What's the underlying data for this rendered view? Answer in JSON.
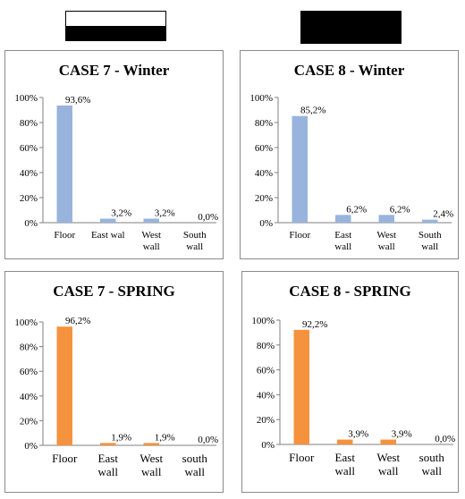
{
  "chart_data": [
    {
      "type": "bar",
      "title": "CASE 7 - Winter",
      "categories": [
        "Floor",
        "East wal",
        "West\nwall",
        "South\nwall"
      ],
      "values": [
        93.6,
        3.2,
        3.2,
        0.0
      ],
      "data_labels": [
        "93,6%",
        "3,2%",
        "3,2%",
        "0,0%"
      ],
      "yticks": [
        "0%",
        "20%",
        "40%",
        "60%",
        "80%",
        "100%"
      ],
      "ylim": [
        0,
        100
      ],
      "color": "#98b4dc",
      "grid": false
    },
    {
      "type": "bar",
      "title": "CASE 8 - Winter",
      "categories": [
        "Floor",
        "East\nwall",
        "West\nwall",
        "South\nwall"
      ],
      "values": [
        85.2,
        6.2,
        6.2,
        2.4
      ],
      "data_labels": [
        "85,2%",
        "6,2%",
        "6,2%",
        "2,4%"
      ],
      "yticks": [
        "0%",
        "20%",
        "40%",
        "60%",
        "80%",
        "100%"
      ],
      "ylim": [
        0,
        100
      ],
      "color": "#98b4dc",
      "grid": false
    },
    {
      "type": "bar",
      "title": "CASE 7 - SPRING",
      "categories": [
        "Floor",
        "East\nwall",
        "West\nwall",
        "south\nwall"
      ],
      "values": [
        96.2,
        1.9,
        1.9,
        0.0
      ],
      "data_labels": [
        "96,2%",
        "1,9%",
        "1,9%",
        "0,0%"
      ],
      "yticks": [
        "0%",
        "20%",
        "40%",
        "60%",
        "80%",
        "100%"
      ],
      "ylim": [
        0,
        100
      ],
      "color": "#f5923e",
      "grid": false
    },
    {
      "type": "bar",
      "title": "CASE  8 - SPRING",
      "categories": [
        "Floor",
        "East\nwall",
        "West\nwall",
        "south\nwall"
      ],
      "values": [
        92.2,
        3.9,
        3.9,
        0.0
      ],
      "data_labels": [
        "92,2%",
        "3,9%",
        "3,9%",
        "0,0%"
      ],
      "yticks": [
        "0%",
        "20%",
        "40%",
        "60%",
        "80%",
        "100%"
      ],
      "ylim": [
        0,
        100
      ],
      "color": "#f5923e",
      "grid": false
    }
  ],
  "legend_swatches": [
    {
      "name": "case-7-swatch",
      "colors": [
        "#ffffff",
        "#000000"
      ]
    },
    {
      "name": "case-8-swatch",
      "colors": [
        "#000000",
        "#000000"
      ]
    }
  ]
}
